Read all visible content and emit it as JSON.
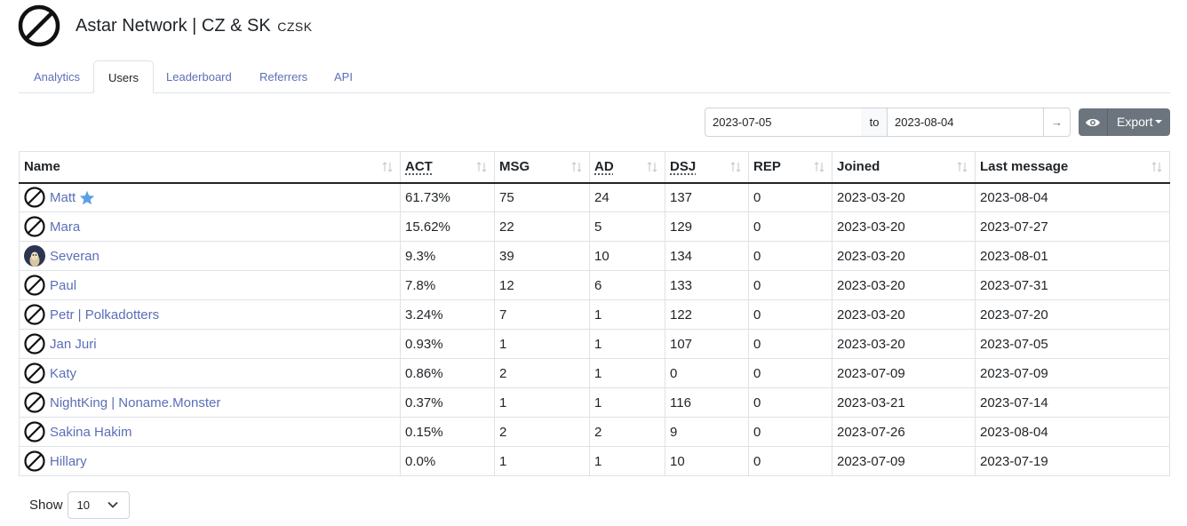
{
  "header": {
    "title": "Astar Network | CZ & SK",
    "subtitle": "CZSK",
    "logo_icon": "no-entry-icon"
  },
  "tabs": [
    {
      "label": "Analytics",
      "active": false
    },
    {
      "label": "Users",
      "active": true
    },
    {
      "label": "Leaderboard",
      "active": false
    },
    {
      "label": "Referrers",
      "active": false
    },
    {
      "label": "API",
      "active": false
    }
  ],
  "range": {
    "from": "2023-07-05",
    "to_label": "to",
    "to": "2023-08-04",
    "go": "→"
  },
  "toolbar": {
    "view_icon": "eye-icon",
    "export_label": "Export"
  },
  "table": {
    "columns": [
      "Name",
      "ACT",
      "MSG",
      "AD",
      "DSJ",
      "REP",
      "Joined",
      "Last message"
    ],
    "rows": [
      {
        "name": "Matt",
        "starred": true,
        "avatar": "no-entry",
        "act": "61.73%",
        "msg": "75",
        "ad": "24",
        "dsj": "137",
        "rep": "0",
        "joined": "2023-03-20",
        "last": "2023-08-04"
      },
      {
        "name": "Mara",
        "starred": false,
        "avatar": "no-entry",
        "act": "15.62%",
        "msg": "22",
        "ad": "5",
        "dsj": "129",
        "rep": "0",
        "joined": "2023-03-20",
        "last": "2023-07-27"
      },
      {
        "name": "Severan",
        "starred": false,
        "avatar": "photo",
        "act": "9.3%",
        "msg": "39",
        "ad": "10",
        "dsj": "134",
        "rep": "0",
        "joined": "2023-03-20",
        "last": "2023-08-01"
      },
      {
        "name": "Paul",
        "starred": false,
        "avatar": "no-entry",
        "act": "7.8%",
        "msg": "12",
        "ad": "6",
        "dsj": "133",
        "rep": "0",
        "joined": "2023-03-20",
        "last": "2023-07-31"
      },
      {
        "name": "Petr | Polkadotters",
        "starred": false,
        "avatar": "no-entry",
        "act": "3.24%",
        "msg": "7",
        "ad": "1",
        "dsj": "122",
        "rep": "0",
        "joined": "2023-03-20",
        "last": "2023-07-20"
      },
      {
        "name": "Jan Juri",
        "starred": false,
        "avatar": "no-entry",
        "act": "0.93%",
        "msg": "1",
        "ad": "1",
        "dsj": "107",
        "rep": "0",
        "joined": "2023-03-20",
        "last": "2023-07-05"
      },
      {
        "name": "Katy",
        "starred": false,
        "avatar": "no-entry",
        "act": "0.86%",
        "msg": "2",
        "ad": "1",
        "dsj": "0",
        "rep": "0",
        "joined": "2023-07-09",
        "last": "2023-07-09"
      },
      {
        "name": "NightKing | Noname.Monster",
        "starred": false,
        "avatar": "no-entry",
        "act": "0.37%",
        "msg": "1",
        "ad": "1",
        "dsj": "116",
        "rep": "0",
        "joined": "2023-03-21",
        "last": "2023-07-14"
      },
      {
        "name": "Sakina Hakim",
        "starred": false,
        "avatar": "no-entry",
        "act": "0.15%",
        "msg": "2",
        "ad": "2",
        "dsj": "9",
        "rep": "0",
        "joined": "2023-07-26",
        "last": "2023-08-04"
      },
      {
        "name": "Hillary",
        "starred": false,
        "avatar": "no-entry",
        "act": "0.0%",
        "msg": "1",
        "ad": "1",
        "dsj": "10",
        "rep": "0",
        "joined": "2023-07-09",
        "last": "2023-07-19"
      }
    ]
  },
  "pager": {
    "show_label": "Show",
    "page_size": "10"
  },
  "colors": {
    "link": "#5b6fb8",
    "button": "#6c757d",
    "star": "#5aa1e3",
    "border": "#dee2e6"
  }
}
